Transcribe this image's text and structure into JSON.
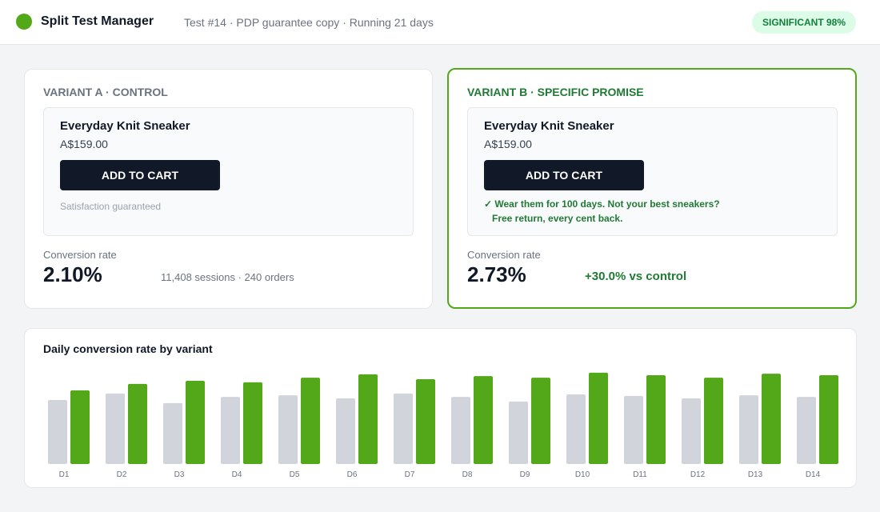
{
  "header": {
    "title": "Split Test Manager",
    "subtitle": "Test #14 · PDP guarantee copy · Running 21 days",
    "badge": "SIGNIFICANT 98%"
  },
  "variants": [
    {
      "label": "VARIANT A · CONTROL",
      "product": "Everyday Knit Sneaker",
      "price": "A$159.00",
      "button": "ADD TO CART",
      "note": "Satisfaction guaranteed",
      "metric_label": "Conversion rate",
      "rate": "2.10%",
      "detail": "11,408 sessions · 240 orders"
    },
    {
      "label": "VARIANT B · SPECIFIC PROMISE",
      "product": "Everyday Knit Sneaker",
      "price": "A$159.00",
      "button": "ADD TO CART",
      "note": "✓ Wear them for 100 days. Not your best sneakers? Free return, every cent back.",
      "metric_label": "Conversion rate",
      "rate": "2.73%",
      "detail": "+30.0% vs control"
    }
  ],
  "chart_data": {
    "type": "bar",
    "title": "Daily conversion rate by variant",
    "categories": [
      "D1",
      "D2",
      "D3",
      "D4",
      "D5",
      "D6",
      "D7",
      "D8",
      "D9",
      "D10",
      "D11",
      "D12",
      "D13",
      "D14"
    ],
    "series": [
      {
        "color": "#d1d5db",
        "values": [
          2.07,
          2.28,
          1.97,
          2.17,
          2.22,
          2.12,
          2.28,
          2.17,
          2.02,
          2.25,
          2.2,
          2.12,
          2.22,
          2.17
        ]
      },
      {
        "color": "#52a818",
        "values": [
          2.38,
          2.59,
          2.69,
          2.64,
          2.79,
          2.9,
          2.74,
          2.84,
          2.79,
          2.95,
          2.87,
          2.79,
          2.92,
          2.87
        ]
      }
    ],
    "ylim": [
      0,
      3
    ]
  }
}
